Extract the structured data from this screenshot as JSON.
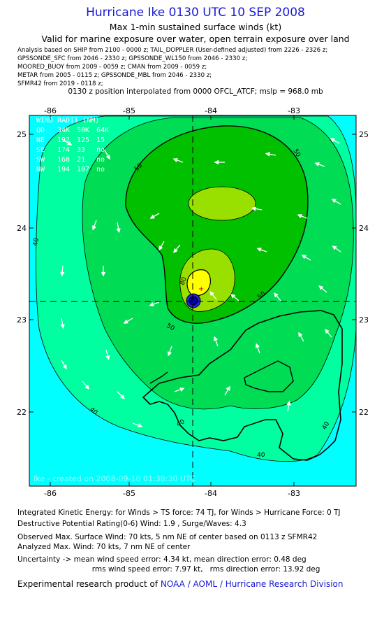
{
  "title": "Hurricane Ike 0130 UTC 10 SEP 2008",
  "subtitle1": "Max 1-min sustained surface winds (kt)",
  "subtitle2": "Valid for marine exposure over water, open terrain exposure over land",
  "analysis_lines": [
    "Analysis based on  SHIP from 2100 - 0000 z;  TAIL_DOPPLER (User-defined adjusted) from 2226 - 2326 z;",
    "GPSSONDE_SFC from 2046 - 2330 z;  GPSSONDE_WL150 from 2046 - 2330 z;",
    "MOORED_BUOY from 2009 - 0059 z;  CMAN from 2009 - 0059 z;",
    "METAR from 2005 - 0115 z;  GPSSONDE_MBL from 2046 - 2330 z;",
    "SFMR42 from 2019 - 0118 z;"
  ],
  "position_line": "0130 z position interpolated from 0000 OFCL_ATCF; mslp = 968.0 mb",
  "map": {
    "lon_labels": [
      "-86",
      "-85",
      "-84",
      "-83"
    ],
    "lat_labels": [
      "25",
      "24",
      "23",
      "22"
    ],
    "contour_labels": [
      "50",
      "50",
      "50",
      "40",
      "40",
      "40",
      "40",
      "40",
      "50",
      "80"
    ],
    "watermark": "Ike - created on 2008-09-10 01:38:30 UTC",
    "center_marker": "+",
    "colors": {
      "ocean": "#00ffff",
      "band_34": "#00ffa0",
      "band_40": "#00dd55",
      "band_50": "#00c000",
      "band_64": "#99e000",
      "band_80": "#ffff00",
      "eye": "#0000c0"
    }
  },
  "wind_radii": {
    "header": "WIND RADII (NM)",
    "columns": [
      "QD",
      "34K",
      "50K",
      "64K"
    ],
    "rows": [
      [
        "NE",
        "192",
        "125",
        "15"
      ],
      [
        "SE",
        "174",
        "33",
        "no"
      ],
      [
        "SW",
        "168",
        "21",
        "no"
      ],
      [
        "NW",
        "194",
        "107",
        "no"
      ]
    ]
  },
  "footer": {
    "ike": "Integrated Kinetic Energy:  for Winds > TS force: 74 TJ,  for Winds > Hurricane Force: 0 TJ",
    "dpr": "Destructive Potential Rating(0-6)   Wind: 1.9 , Surge/Waves: 4.3",
    "observed": "Observed Max. Surface Wind: 70 kts, 5 nm NE of center based on 0113 z SFMR42",
    "analyzed": "Analyzed Max. Wind: 70 kts, 7 nm NE of center",
    "unc1": "Uncertainty -> mean wind speed error: 4.34 kt,   mean direction error: 0.48 deg",
    "unc2": "                                rms wind speed error: 7.97 kt,   rms direction error: 13.92 deg",
    "product_prefix": "Experimental research product of ",
    "product_link": "NOAA / AOML / Hurricane Research Division"
  }
}
